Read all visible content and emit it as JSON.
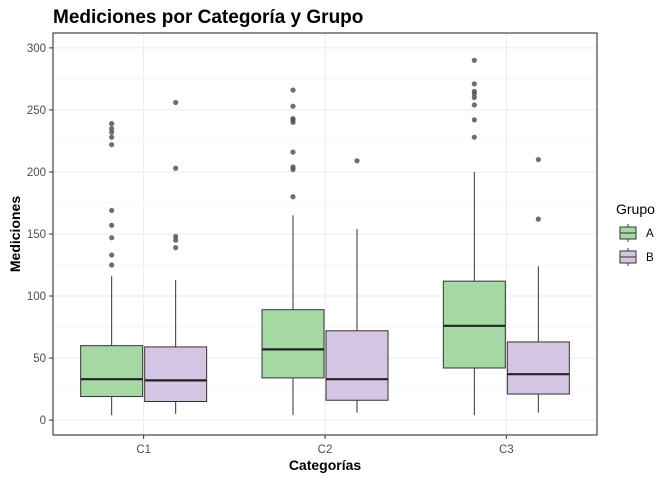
{
  "chart_data": {
    "type": "boxplot",
    "title": "Mediciones por Categoría y Grupo",
    "xlabel": "Categorías",
    "ylabel": "Mediciones",
    "categories": [
      "C1",
      "C2",
      "C3"
    ],
    "ylim": [
      -12,
      312
    ],
    "yticks": [
      "0",
      "50",
      "100",
      "150",
      "200",
      "250",
      "300"
    ],
    "grid": true,
    "legend": {
      "title": "Grupo",
      "position": "right"
    },
    "series": [
      {
        "name": "A",
        "color": "#a6d8a3",
        "boxes": [
          {
            "category": "C1",
            "min": 4,
            "q1": 19,
            "median": 33,
            "q3": 60,
            "max": 116,
            "outliers": [
              125,
              133,
              147,
              157,
              169,
              222,
              228,
              232,
              235,
              239
            ]
          },
          {
            "category": "C2",
            "min": 4,
            "q1": 34,
            "median": 57,
            "q3": 89,
            "max": 165,
            "outliers": [
              180,
              202,
              204,
              216,
              240,
              242,
              243,
              253,
              266
            ]
          },
          {
            "category": "C3",
            "min": 4,
            "q1": 42,
            "median": 76,
            "q3": 112,
            "max": 200,
            "outliers": [
              228,
              242,
              254,
              260,
              263,
              265,
              271,
              290
            ]
          }
        ]
      },
      {
        "name": "B",
        "color": "#d4c5e2",
        "boxes": [
          {
            "category": "C1",
            "min": 5,
            "q1": 15,
            "median": 32,
            "q3": 59,
            "max": 113,
            "outliers": [
              139,
              145,
              148,
              203,
              256
            ]
          },
          {
            "category": "C2",
            "min": 6,
            "q1": 16,
            "median": 33,
            "q3": 72,
            "max": 154,
            "outliers": [
              209
            ]
          },
          {
            "category": "C3",
            "min": 6,
            "q1": 21,
            "median": 37,
            "q3": 63,
            "max": 124,
            "outliers": [
              162,
              210
            ]
          }
        ]
      }
    ]
  }
}
